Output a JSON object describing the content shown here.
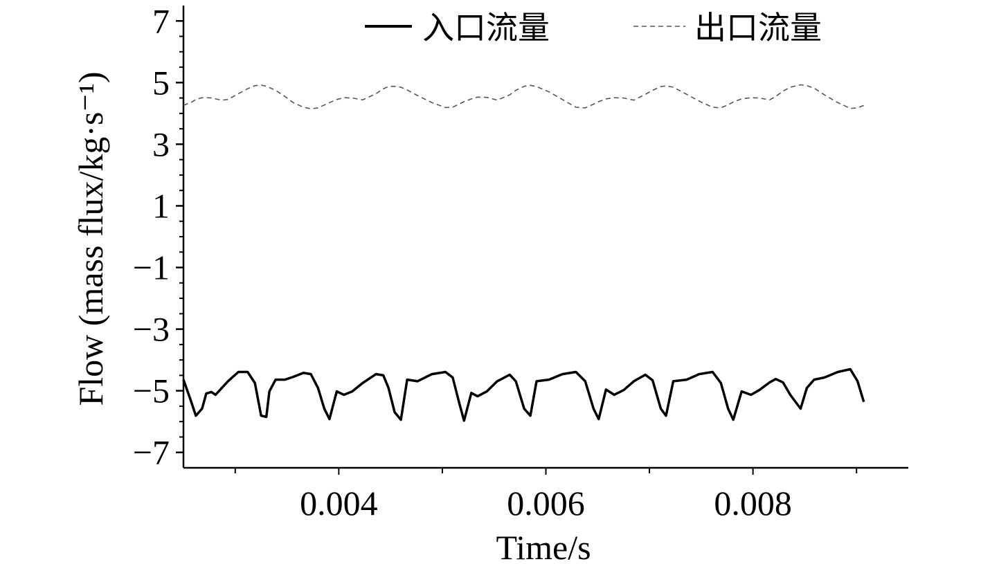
{
  "chart_data": {
    "type": "line",
    "xlabel": "Time/s",
    "ylabel": "Flow (mass flux/kg·s⁻¹)",
    "x": [
      0.0025,
      0.00257,
      0.00262,
      0.00268,
      0.00272,
      0.00277,
      0.00281,
      0.00287,
      0.00293,
      0.00303,
      0.00312,
      0.00319,
      0.00325,
      0.0033,
      0.00333,
      0.00339,
      0.00348,
      0.00356,
      0.00366,
      0.00373,
      0.0038,
      0.00386,
      0.00391,
      0.00398,
      0.00405,
      0.00413,
      0.00423,
      0.00436,
      0.00443,
      0.00448,
      0.00454,
      0.0046,
      0.00466,
      0.00476,
      0.0049,
      0.00503,
      0.0051,
      0.00516,
      0.00521,
      0.00528,
      0.00534,
      0.00543,
      0.00553,
      0.00565,
      0.00571,
      0.00579,
      0.00585,
      0.00591,
      0.00603,
      0.00616,
      0.00629,
      0.00638,
      0.00646,
      0.00651,
      0.00658,
      0.00666,
      0.00675,
      0.00685,
      0.00696,
      0.00703,
      0.00711,
      0.00716,
      0.00723,
      0.00736,
      0.00748,
      0.00761,
      0.00769,
      0.00776,
      0.00781,
      0.00789,
      0.00798,
      0.00806,
      0.00816,
      0.00822,
      0.00829,
      0.00836,
      0.00846,
      0.00852,
      0.00859,
      0.00869,
      0.00882,
      0.00894,
      0.00901,
      0.00907
    ],
    "series": [
      {
        "name": "入口流量",
        "color": "#000000",
        "style": "solid",
        "values": [
          -4.64,
          -5.31,
          -5.81,
          -5.58,
          -5.09,
          -5.04,
          -5.13,
          -4.91,
          -4.69,
          -4.39,
          -4.39,
          -4.75,
          -5.81,
          -5.85,
          -5.02,
          -4.64,
          -4.64,
          -4.55,
          -4.42,
          -4.46,
          -4.91,
          -5.58,
          -5.92,
          -5.02,
          -5.13,
          -5.02,
          -4.75,
          -4.46,
          -4.5,
          -4.91,
          -5.7,
          -5.94,
          -4.64,
          -4.69,
          -4.46,
          -4.39,
          -4.57,
          -5.36,
          -5.97,
          -5.07,
          -5.18,
          -5.02,
          -4.69,
          -4.48,
          -4.69,
          -5.58,
          -5.81,
          -4.69,
          -4.64,
          -4.46,
          -4.39,
          -4.69,
          -5.58,
          -5.92,
          -4.96,
          -5.13,
          -4.98,
          -4.69,
          -4.48,
          -4.66,
          -5.58,
          -5.81,
          -4.69,
          -4.64,
          -4.46,
          -4.39,
          -4.75,
          -5.58,
          -5.94,
          -5.02,
          -5.13,
          -4.98,
          -4.73,
          -4.62,
          -4.73,
          -5.13,
          -5.58,
          -4.91,
          -4.64,
          -4.57,
          -4.39,
          -4.3,
          -4.69,
          -5.36
        ]
      },
      {
        "name": "出口流量",
        "color": "#555555",
        "style": "dashed",
        "values": [
          4.26,
          4.35,
          4.45,
          4.51,
          4.51,
          4.5,
          4.47,
          4.43,
          4.45,
          4.64,
          4.8,
          4.9,
          4.92,
          4.88,
          4.84,
          4.75,
          4.55,
          4.35,
          4.2,
          4.15,
          4.18,
          4.27,
          4.35,
          4.45,
          4.51,
          4.5,
          4.44,
          4.64,
          4.8,
          4.87,
          4.88,
          4.85,
          4.76,
          4.58,
          4.35,
          4.19,
          4.2,
          4.3,
          4.38,
          4.47,
          4.53,
          4.52,
          4.43,
          4.6,
          4.75,
          4.88,
          4.91,
          4.87,
          4.7,
          4.45,
          4.2,
          4.18,
          4.3,
          4.38,
          4.47,
          4.51,
          4.5,
          4.43,
          4.62,
          4.75,
          4.87,
          4.89,
          4.85,
          4.62,
          4.4,
          4.2,
          4.18,
          4.28,
          4.37,
          4.47,
          4.51,
          4.5,
          4.44,
          4.55,
          4.72,
          4.85,
          4.93,
          4.9,
          4.82,
          4.6,
          4.35,
          4.16,
          4.18,
          4.26
        ]
      }
    ],
    "xlim": [
      0.0025,
      0.0095
    ],
    "xticks": [
      0.004,
      0.006,
      0.008
    ],
    "xminorticks": [
      0.003,
      0.005,
      0.007,
      0.009
    ],
    "ylim": [
      -7.5,
      7.5
    ],
    "yticks": [
      {
        "value": -7,
        "label": "−7"
      },
      {
        "value": -5,
        "label": "−5"
      },
      {
        "value": -3,
        "label": "−3"
      },
      {
        "value": -1,
        "label": "−1"
      },
      1,
      3,
      5,
      7
    ],
    "yminorticks": [
      -6.5,
      -6,
      -5.5,
      -4.5,
      -4,
      -3.5,
      -2.5,
      -2,
      -1.5,
      -0.5,
      0,
      0.5,
      1.5,
      2,
      2.5,
      3.5,
      4,
      4.5,
      5.5,
      6,
      6.5
    ],
    "grid": false,
    "legend": "top"
  }
}
